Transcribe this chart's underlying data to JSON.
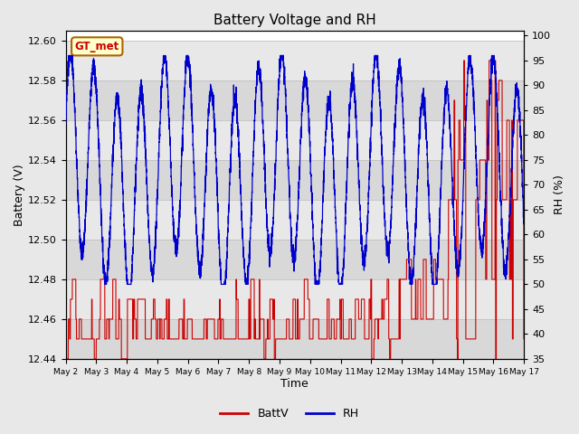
{
  "title": "Battery Voltage and RH",
  "xlabel": "Time",
  "ylabel_left": "Battery (V)",
  "ylabel_right": "RH (%)",
  "ylim_left": [
    12.44,
    12.605
  ],
  "ylim_right": [
    35,
    101
  ],
  "yticks_left": [
    12.44,
    12.46,
    12.48,
    12.5,
    12.52,
    12.54,
    12.56,
    12.58,
    12.6
  ],
  "yticks_right": [
    35,
    40,
    45,
    50,
    55,
    60,
    65,
    70,
    75,
    80,
    85,
    90,
    95,
    100
  ],
  "xtick_positions": [
    0,
    1,
    2,
    3,
    4,
    5,
    6,
    7,
    8,
    9,
    10,
    11,
    12,
    13,
    14,
    15
  ],
  "xtick_labels": [
    "May 2",
    "May 3",
    "May 4",
    "May 5",
    "May 6",
    "May 7",
    "May 8",
    "May 9",
    "May 10",
    "May 11",
    "May 12",
    "May 13",
    "May 14",
    "May 15",
    "May 16",
    "May 17"
  ],
  "color_battv": "#cc0000",
  "color_rh": "#0000cc",
  "fig_bg": "#e8e8e8",
  "plot_bg_light": "#e8e8e8",
  "plot_bg_dark": "#d8d8d8",
  "grid_color": "#cccccc",
  "gt_met_bg": "#ffffcc",
  "gt_met_border": "#aa6600",
  "gt_met_text": "#cc0000",
  "legend_battv": "BattV",
  "legend_rh": "RH",
  "watermark": "GT_met",
  "rh_xlim": [
    0,
    15
  ],
  "battv_xlim": [
    0,
    15
  ]
}
